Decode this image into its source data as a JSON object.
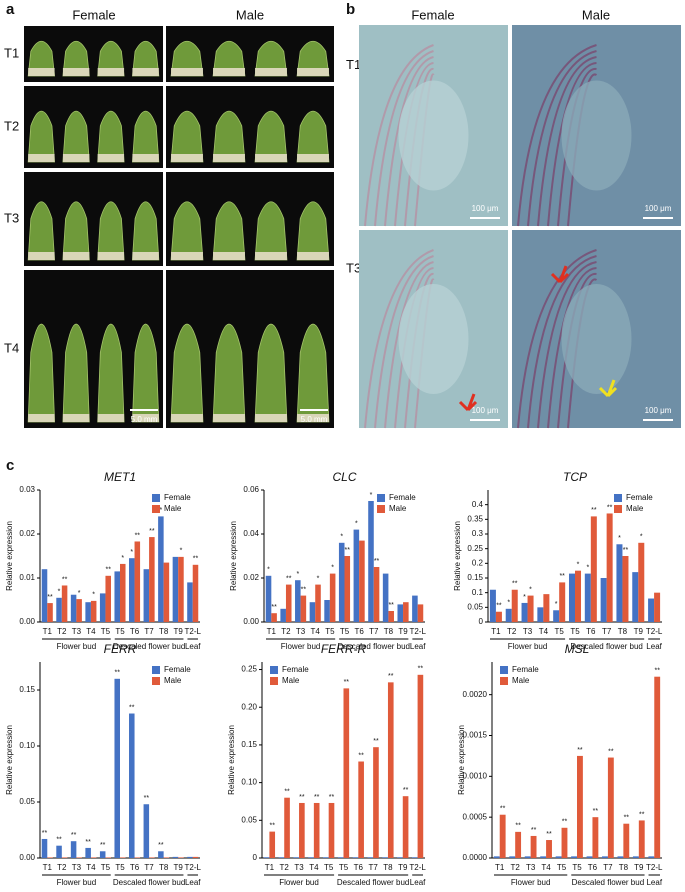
{
  "panel_labels": [
    "a",
    "b",
    "c"
  ],
  "panel_a": {
    "columns": [
      "Female",
      "Male"
    ],
    "rows": [
      "T1",
      "T2",
      "T3",
      "T4"
    ],
    "scale_bars": [
      "5.0 mm",
      "5.0 mm"
    ]
  },
  "panel_b": {
    "columns": [
      "Female",
      "Male"
    ],
    "rows": [
      "T1",
      "T3"
    ],
    "scale_bars": [
      "100 μm",
      "100 μm",
      "100 μm",
      "100 μm"
    ]
  },
  "chart_data": [
    {
      "type": "bar",
      "title": "MET1",
      "ylabel": "Relative expression",
      "legend": "upper right",
      "categories": [
        "T1",
        "T2",
        "T3",
        "T4",
        "T5",
        "T5",
        "T6",
        "T7",
        "T8",
        "T9",
        "T2-L"
      ],
      "category_groups": [
        "Flower bud",
        "Flower bud",
        "Flower bud",
        "Flower bud",
        "Flower bud",
        "Descaled flower bud",
        "Descaled flower bud",
        "Descaled flower bud",
        "Descaled flower bud",
        "Descaled flower bud",
        "Leaf"
      ],
      "ylim": [
        0,
        0.03
      ],
      "yticks": [
        {
          "value": 0,
          "label": "0.00"
        },
        {
          "value": 0.01,
          "label": "0.01"
        },
        {
          "value": 0.02,
          "label": "0.02"
        },
        {
          "value": 0.03,
          "label": "0.03"
        }
      ],
      "series": [
        {
          "name": "Female",
          "color": "#4472c4",
          "values": [
            0.012,
            0.0055,
            0.0062,
            0.0045,
            0.0065,
            0.0115,
            0.0145,
            0.012,
            0.024,
            0.0148,
            0.009
          ],
          "significance": [
            null,
            "*",
            null,
            null,
            null,
            null,
            "*",
            null,
            "*",
            null,
            null
          ]
        },
        {
          "name": "Male",
          "color": "#e05a3a",
          "values": [
            0.0043,
            0.0083,
            0.0052,
            0.0048,
            0.0105,
            0.0132,
            0.0183,
            0.0193,
            0.0135,
            0.0148,
            0.013
          ],
          "significance": [
            "**",
            "**",
            "*",
            "*",
            "**",
            "*",
            "**",
            "**",
            null,
            "*",
            "**"
          ]
        }
      ]
    },
    {
      "type": "bar",
      "title": "CLC",
      "ylabel": "Relative expression",
      "legend": "upper right",
      "categories": [
        "T1",
        "T2",
        "T3",
        "T4",
        "T5",
        "T5",
        "T6",
        "T7",
        "T8",
        "T9",
        "T2-L"
      ],
      "category_groups": [
        "Flower bud",
        "Flower bud",
        "Flower bud",
        "Flower bud",
        "Flower bud",
        "Descaled flower bud",
        "Descaled flower bud",
        "Descaled flower bud",
        "Descaled flower bud",
        "Descaled flower bud",
        "Leaf"
      ],
      "ylim": [
        0,
        0.06
      ],
      "yticks": [
        {
          "value": 0,
          "label": "0.00"
        },
        {
          "value": 0.02,
          "label": "0.02"
        },
        {
          "value": 0.04,
          "label": "0.04"
        },
        {
          "value": 0.06,
          "label": "0.06"
        }
      ],
      "series": [
        {
          "name": "Female",
          "color": "#4472c4",
          "values": [
            0.021,
            0.006,
            0.019,
            0.009,
            0.01,
            0.036,
            0.042,
            0.055,
            0.022,
            0.008,
            0.012
          ],
          "significance": [
            "*",
            null,
            "*",
            null,
            null,
            "*",
            "*",
            "*",
            null,
            null,
            null
          ]
        },
        {
          "name": "Male",
          "color": "#e05a3a",
          "values": [
            0.004,
            0.017,
            0.012,
            0.017,
            0.022,
            0.03,
            0.037,
            0.025,
            0.005,
            0.009,
            0.008
          ],
          "significance": [
            "**",
            "**",
            "**",
            "*",
            "*",
            "**",
            null,
            "**",
            "**",
            null,
            null
          ]
        }
      ]
    },
    {
      "type": "bar",
      "title": "TCP",
      "ylabel": "Relative expression",
      "legend": "upper right",
      "categories": [
        "T1",
        "T2",
        "T3",
        "T4",
        "T5",
        "T5",
        "T6",
        "T7",
        "T8",
        "T9",
        "T2-L"
      ],
      "category_groups": [
        "Flower bud",
        "Flower bud",
        "Flower bud",
        "Flower bud",
        "Flower bud",
        "Descaled flower bud",
        "Descaled flower bud",
        "Descaled flower bud",
        "Descaled flower bud",
        "Descaled flower bud",
        "Leaf"
      ],
      "ylim": [
        0,
        0.45
      ],
      "yticks": [
        0,
        0.05,
        0.1,
        0.15,
        0.2,
        0.25,
        0.3,
        0.35,
        0.4
      ],
      "series": [
        {
          "name": "Female",
          "color": "#4472c4",
          "values": [
            0.11,
            0.045,
            0.065,
            0.05,
            0.04,
            0.165,
            0.165,
            0.15,
            0.265,
            0.17,
            0.08
          ],
          "significance": [
            null,
            "*",
            "*",
            null,
            "*",
            null,
            "*",
            null,
            "*",
            null,
            null
          ]
        },
        {
          "name": "Male",
          "color": "#e05a3a",
          "values": [
            0.035,
            0.11,
            0.09,
            0.095,
            0.135,
            0.175,
            0.36,
            0.37,
            0.225,
            0.27,
            0.1
          ],
          "significance": [
            "**",
            "**",
            "*",
            null,
            "**",
            "*",
            "**",
            "**",
            "**",
            "*",
            null
          ]
        }
      ]
    },
    {
      "type": "bar",
      "title": "FERR",
      "ylabel": "Relative expression",
      "legend": "upper right",
      "categories": [
        "T1",
        "T2",
        "T3",
        "T4",
        "T5",
        "T5",
        "T6",
        "T7",
        "T8",
        "T9",
        "T2-L"
      ],
      "category_groups": [
        "Flower bud",
        "Flower bud",
        "Flower bud",
        "Flower bud",
        "Flower bud",
        "Descaled flower bud",
        "Descaled flower bud",
        "Descaled flower bud",
        "Descaled flower bud",
        "Descaled flower bud",
        "Leaf"
      ],
      "ylim": [
        0,
        0.175
      ],
      "yticks": [
        {
          "value": 0,
          "label": "0.00"
        },
        {
          "value": 0.05,
          "label": "0.05"
        },
        {
          "value": 0.1,
          "label": "0.10"
        },
        {
          "value": 0.15,
          "label": "0.15"
        }
      ],
      "series": [
        {
          "name": "Female",
          "color": "#4472c4",
          "values": [
            0.017,
            0.011,
            0.015,
            0.009,
            0.006,
            0.16,
            0.129,
            0.048,
            0.006,
            0.001,
            0.001
          ],
          "significance": [
            "**",
            "**",
            "**",
            "**",
            "**",
            "**",
            "**",
            "**",
            "**",
            null,
            null
          ]
        },
        {
          "name": "Male",
          "color": "#e05a3a",
          "values": [
            0.0005,
            0.0005,
            0.0005,
            0.0005,
            0.0005,
            0.0005,
            0.0005,
            0.0005,
            0.0005,
            0.0005,
            0.001
          ],
          "significance": [
            null,
            null,
            null,
            null,
            null,
            null,
            null,
            null,
            null,
            null,
            null
          ]
        }
      ]
    },
    {
      "type": "bar",
      "title": "FERR-R",
      "ylabel": "Relative expression",
      "legend": "upper left",
      "categories": [
        "T1",
        "T2",
        "T3",
        "T4",
        "T5",
        "T5",
        "T6",
        "T7",
        "T8",
        "T9",
        "T2-L"
      ],
      "category_groups": [
        "Flower bud",
        "Flower bud",
        "Flower bud",
        "Flower bud",
        "Flower bud",
        "Descaled flower bud",
        "Descaled flower bud",
        "Descaled flower bud",
        "Descaled flower bud",
        "Descaled flower bud",
        "Leaf"
      ],
      "ylim": [
        0,
        0.26
      ],
      "yticks": [
        0,
        0.05,
        {
          "value": 0.1,
          "label": "0.10"
        },
        0.15,
        {
          "value": 0.2,
          "label": "0.20"
        },
        0.25
      ],
      "series": [
        {
          "name": "Female",
          "color": "#4472c4",
          "values": [
            0.001,
            0.001,
            0.001,
            0.001,
            0.001,
            0.001,
            0.001,
            0.001,
            0.001,
            0.001,
            0.001
          ],
          "significance": [
            null,
            null,
            null,
            null,
            null,
            null,
            null,
            null,
            null,
            null,
            null
          ]
        },
        {
          "name": "Male",
          "color": "#e05a3a",
          "values": [
            0.035,
            0.08,
            0.073,
            0.073,
            0.073,
            0.225,
            0.128,
            0.147,
            0.233,
            0.082,
            0.243
          ],
          "significance": [
            "**",
            "**",
            "**",
            "**",
            "**",
            "**",
            "**",
            "**",
            "**",
            "**",
            "**"
          ]
        }
      ]
    },
    {
      "type": "bar",
      "title": "MSL",
      "ylabel": "Relative expression",
      "legend": "upper left",
      "categories": [
        "T1",
        "T2",
        "T3",
        "T4",
        "T5",
        "T5",
        "T6",
        "T7",
        "T8",
        "T9",
        "T2-L"
      ],
      "category_groups": [
        "Flower bud",
        "Flower bud",
        "Flower bud",
        "Flower bud",
        "Flower bud",
        "Descaled flower bud",
        "Descaled flower bud",
        "Descaled flower bud",
        "Descaled flower bud",
        "Descaled flower bud",
        "Leaf"
      ],
      "ylim": [
        0,
        0.0024
      ],
      "yticks": [
        {
          "value": 0,
          "label": "0.0000"
        },
        {
          "value": 0.0005,
          "label": "0.0005"
        },
        {
          "value": 0.001,
          "label": "0.0010"
        },
        {
          "value": 0.0015,
          "label": "0.0015"
        },
        {
          "value": 0.002,
          "label": "0.0020"
        }
      ],
      "series": [
        {
          "name": "Female",
          "color": "#4472c4",
          "values": [
            2e-05,
            2e-05,
            2e-05,
            2e-05,
            2e-05,
            2e-05,
            2e-05,
            2e-05,
            2e-05,
            2e-05,
            2e-05
          ],
          "significance": [
            null,
            null,
            null,
            null,
            null,
            null,
            null,
            null,
            null,
            null,
            null
          ]
        },
        {
          "name": "Male",
          "color": "#e05a3a",
          "values": [
            0.00053,
            0.00032,
            0.00027,
            0.00022,
            0.00037,
            0.00125,
            0.0005,
            0.00123,
            0.00042,
            0.00046,
            0.00222
          ],
          "significance": [
            "**",
            "**",
            "**",
            "**",
            "**",
            "**",
            "**",
            "**",
            "**",
            "**",
            "**"
          ]
        }
      ]
    }
  ]
}
